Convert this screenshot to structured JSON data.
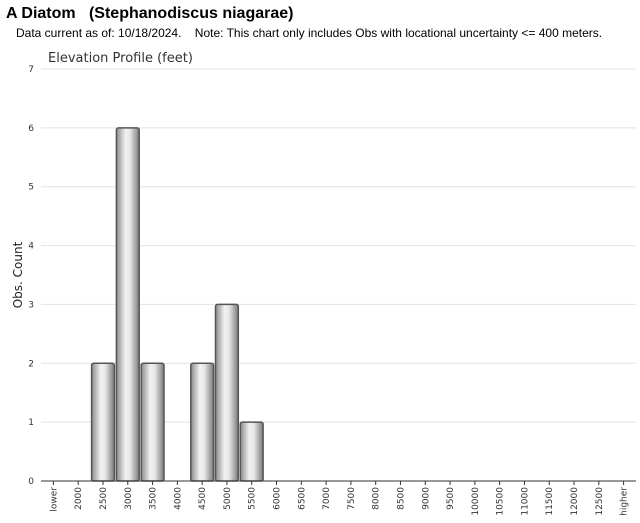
{
  "header": {
    "title": "A Diatom   (Stephanodiscus niagarae)",
    "note": "Data current as of: 10/18/2024.    Note: This chart only includes Obs with locational uncertainty <= 400 meters."
  },
  "chart_data": {
    "type": "bar",
    "title": "Elevation Profile (feet)",
    "xlabel": "",
    "ylabel": "Obs. Count",
    "ylim": [
      0,
      7
    ],
    "yticks": [
      "0",
      "1",
      "2",
      "3",
      "4",
      "5",
      "6",
      "7"
    ],
    "grid": true,
    "categories": [
      "lower",
      "2000",
      "2500",
      "3000",
      "3500",
      "4000",
      "4500",
      "5000",
      "5500",
      "6000",
      "6500",
      "7000",
      "7500",
      "8000",
      "8500",
      "9000",
      "9500",
      "10000",
      "10500",
      "11000",
      "11500",
      "12000",
      "12500",
      "higher"
    ],
    "values": [
      0,
      0,
      2,
      6,
      2,
      0,
      2,
      3,
      1,
      0,
      0,
      0,
      0,
      0,
      0,
      0,
      0,
      0,
      0,
      0,
      0,
      0,
      0,
      0
    ],
    "bar_color": "#c0c0c0",
    "bar_edge_color": "#555555"
  }
}
